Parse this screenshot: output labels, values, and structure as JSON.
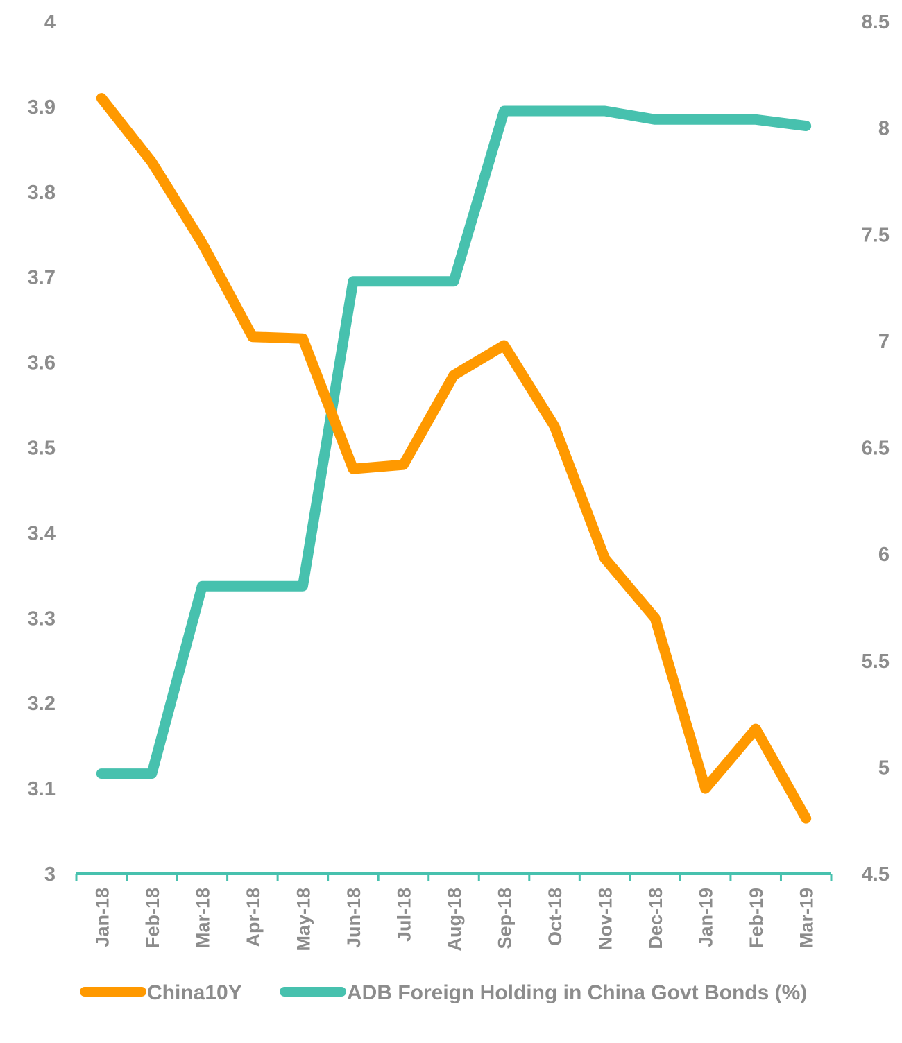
{
  "chart_data": {
    "type": "line",
    "title": "",
    "xlabel": "",
    "ylabel": "",
    "y2label": "",
    "categories": [
      "Jan-18",
      "Feb-18",
      "Mar-18",
      "Apr-18",
      "May-18",
      "Jun-18",
      "Jul-18",
      "Aug-18",
      "Sep-18",
      "Oct-18",
      "Nov-18",
      "Dec-18",
      "Jan-19",
      "Feb-19",
      "Mar-19"
    ],
    "ylim": [
      3,
      4
    ],
    "y_ticks": [
      "3",
      "3.1",
      "3.2",
      "3.3",
      "3.4",
      "3.5",
      "3.6",
      "3.7",
      "3.8",
      "3.9",
      "4"
    ],
    "y2lim": [
      4.5,
      8.5
    ],
    "y2_ticks": [
      "4.5",
      "5",
      "5.5",
      "6",
      "6.5",
      "7",
      "7.5",
      "8",
      "8.5"
    ],
    "grid": false,
    "legend_position": "bottom",
    "series": [
      {
        "name": "China10Y",
        "axis": "left",
        "color": "#FF9900",
        "values": [
          3.91,
          3.835,
          3.74,
          3.63,
          3.628,
          3.475,
          3.48,
          3.585,
          3.62,
          3.525,
          3.37,
          3.3,
          3.1,
          3.17,
          3.065
        ]
      },
      {
        "name": "ADB Foreign Holding in China Govt Bonds (%)",
        "axis": "right",
        "color": "#47C1AE",
        "values": [
          4.97,
          4.97,
          5.85,
          5.85,
          5.85,
          7.28,
          7.28,
          7.28,
          8.08,
          8.08,
          8.08,
          8.04,
          8.04,
          8.04,
          8.01
        ]
      }
    ],
    "axis_color": "#47C1AE",
    "tick_color": "#8c8c8c"
  }
}
